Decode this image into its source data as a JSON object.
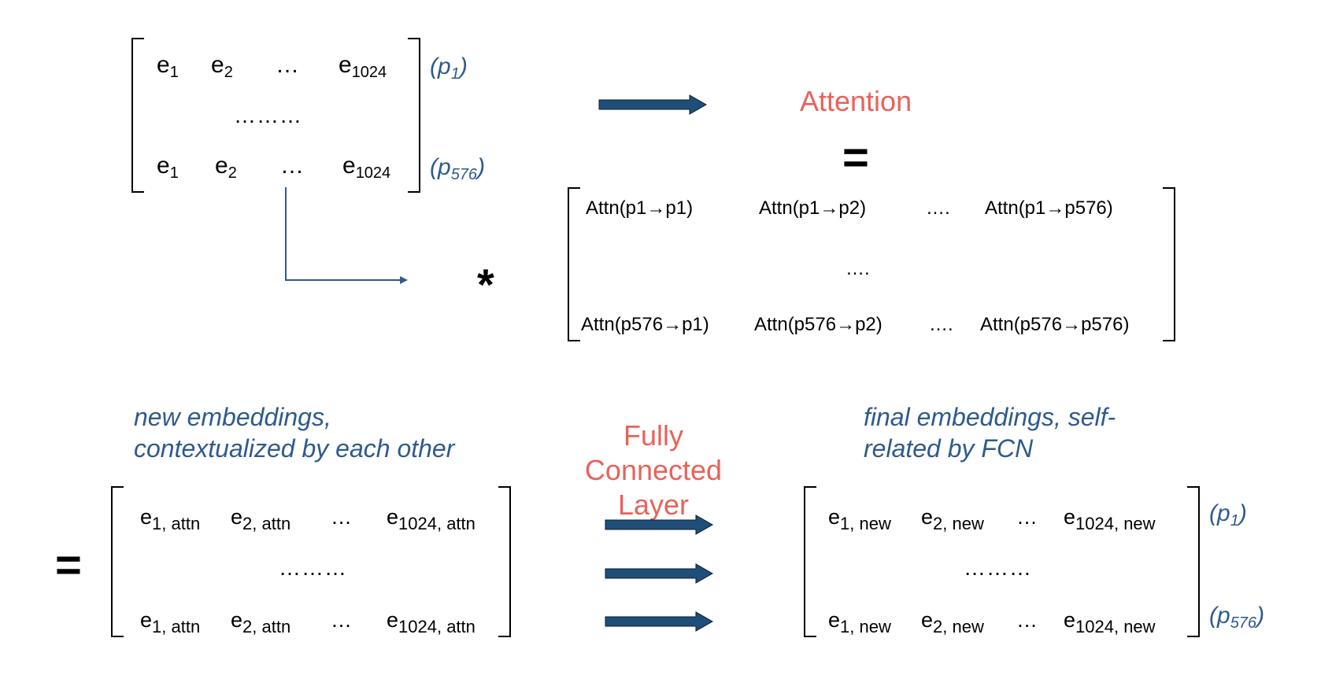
{
  "input_matrix": {
    "row1": [
      "e",
      "1",
      "e",
      "2",
      "…",
      "e",
      "1024"
    ],
    "row_ellipsis": "………",
    "row2": [
      "e",
      "1",
      "e",
      "2",
      "…",
      "e",
      "1024"
    ],
    "label_top": {
      "base": "(p",
      "sub": "1",
      "close": ")"
    },
    "label_bottom": {
      "base": "(p",
      "sub": "576",
      "close": ")"
    }
  },
  "attention_label": "Attention",
  "equals": "=",
  "multiply": "*",
  "attention_matrix": {
    "row1": [
      "Attn(p1→p1)",
      "Attn(p1→p2)",
      "….",
      "Attn(p1→p576)"
    ],
    "row_ellipsis": "….",
    "row2": [
      "Attn(p576→p1)",
      "Attn(p576→p2)",
      "….",
      "Attn(p576→p576)"
    ]
  },
  "new_embeddings_caption": [
    "new embeddings,",
    "contextualized by each other"
  ],
  "fcn_label": [
    "Fully Connected",
    "Layer"
  ],
  "final_embeddings_caption": [
    "final embeddings, self-",
    "related by FCN"
  ],
  "attn_matrix_out": {
    "cells": [
      {
        "base": "e",
        "sub": "1, attn"
      },
      {
        "base": "e",
        "sub": "2, attn"
      },
      {
        "base": "…",
        "sub": ""
      },
      {
        "base": "e",
        "sub": "1024, attn"
      }
    ],
    "row_ellipsis": "………"
  },
  "new_matrix_out": {
    "cells": [
      {
        "base": "e",
        "sub": "1, new"
      },
      {
        "base": "e",
        "sub": "2, new"
      },
      {
        "base": "…",
        "sub": ""
      },
      {
        "base": "e",
        "sub": "1024, new"
      }
    ],
    "row_ellipsis": "………",
    "label_top": {
      "base": "(p",
      "sub": "1",
      "close": ")"
    },
    "label_bottom": {
      "base": "(p",
      "sub": "576",
      "close": ")"
    }
  },
  "colors": {
    "accent_blue": "#2E5A8E",
    "arrow_fill": "#1F4E79",
    "label_red": "#E8625A"
  }
}
